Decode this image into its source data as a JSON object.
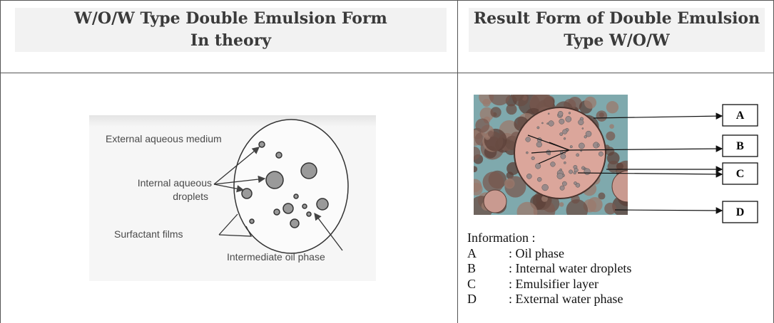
{
  "table": {
    "headers": [
      [
        "W/O/W Type Double Emulsion Form",
        "In theory"
      ],
      [
        "Result Form of Double Emulsion",
        "Type W/O/W"
      ]
    ],
    "figure_left": {
      "labels": {
        "external": "External aqueous medium",
        "internal": [
          "Internal aqueous",
          "droplets"
        ],
        "surfactant": "Surfactant films",
        "oil": "Intermediate oil phase"
      }
    },
    "figure_right": {
      "markers": [
        "A",
        "B",
        "C",
        "D"
      ],
      "information": {
        "title": "Information :",
        "rows": [
          [
            "A",
            ": Oil phase"
          ],
          [
            "B",
            ": Internal water droplets"
          ],
          [
            "C",
            ": Emulsifier layer"
          ],
          [
            "D",
            ": External water phase"
          ]
        ]
      }
    }
  }
}
